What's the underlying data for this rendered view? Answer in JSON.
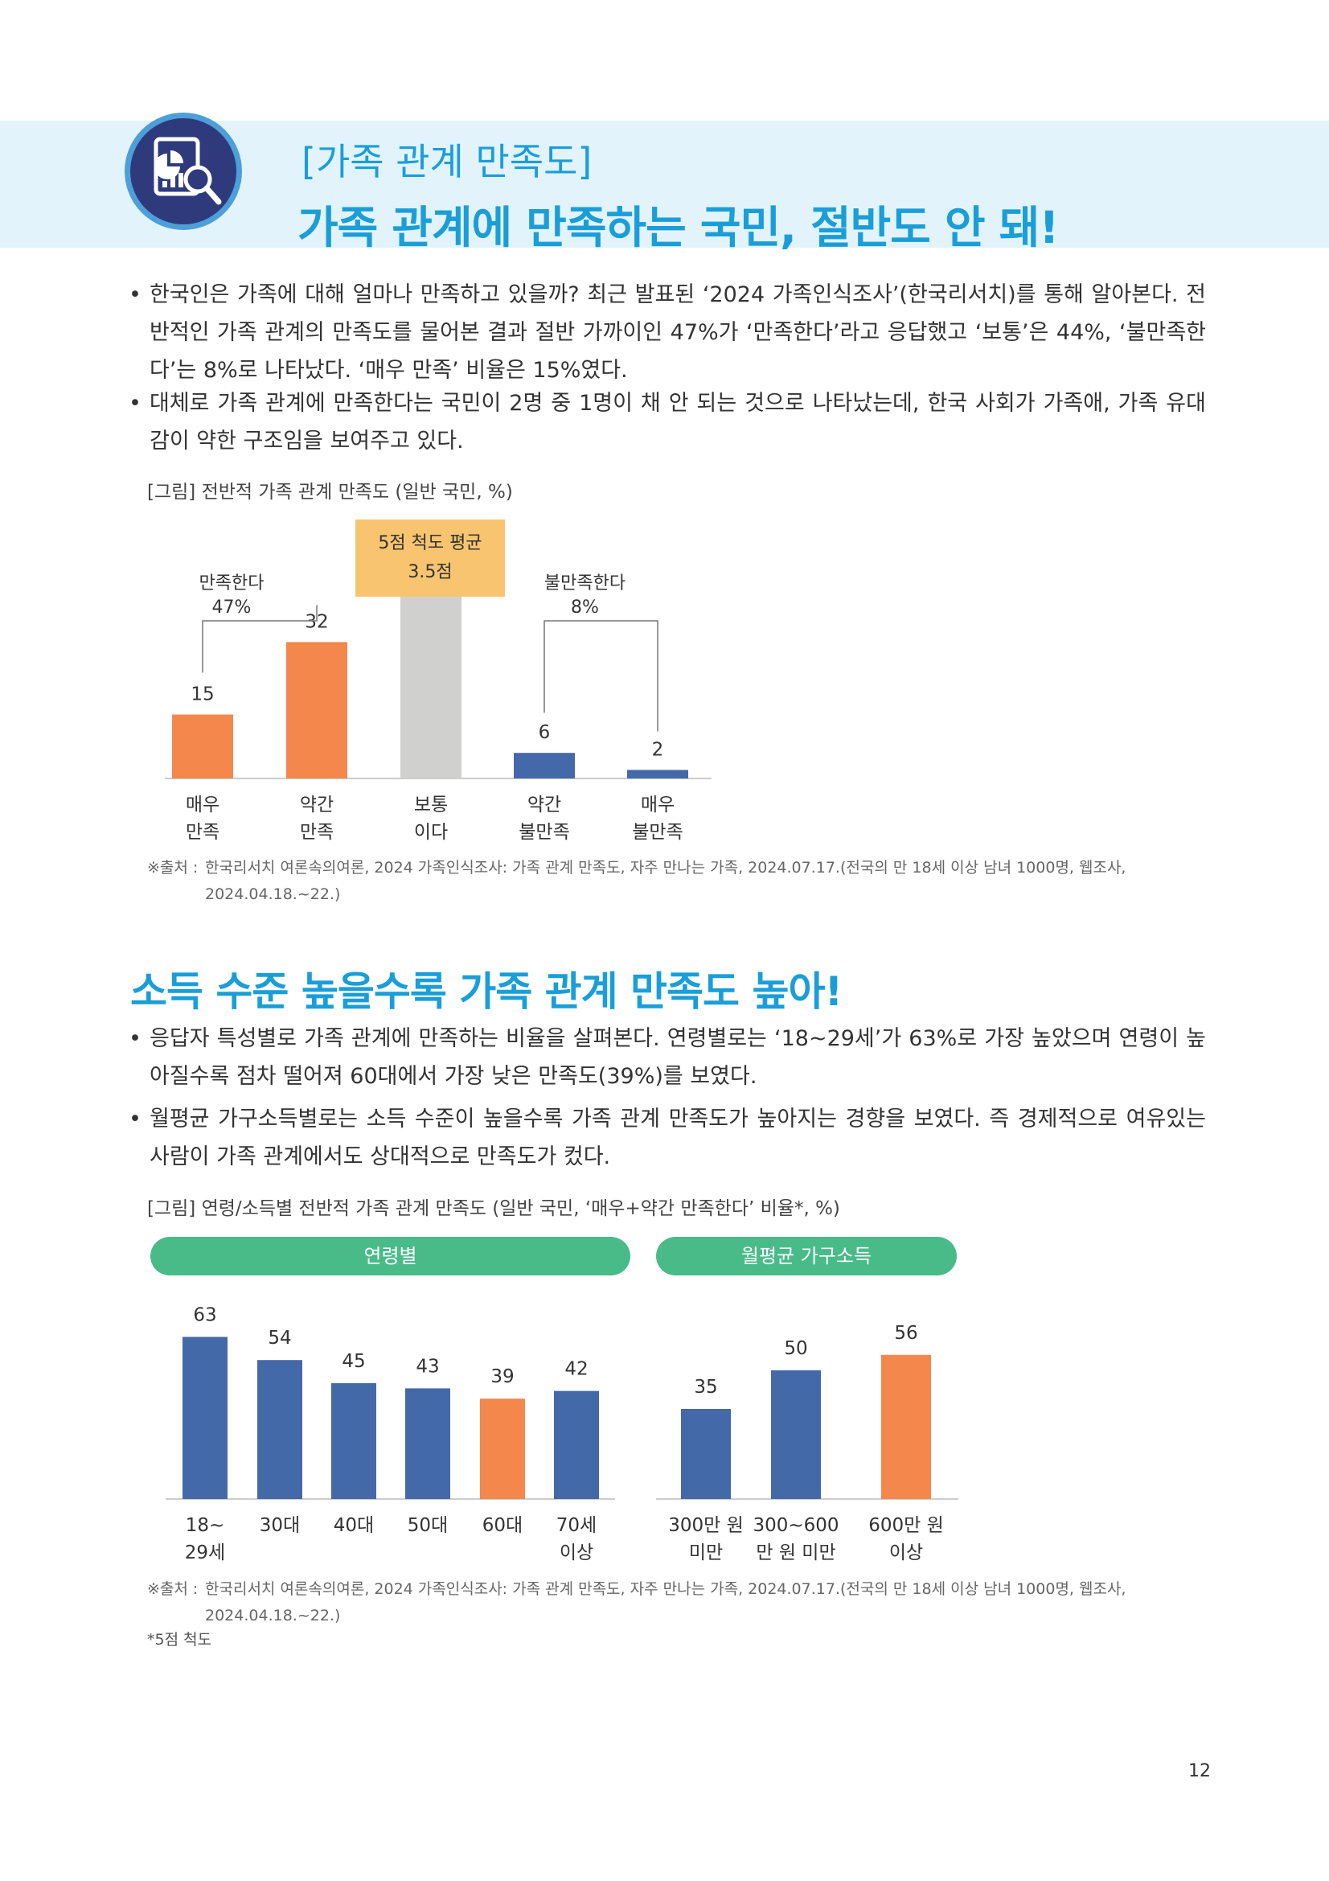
{
  "header": {
    "subtitle": "[가족 관계 만족도]",
    "title": "가족 관계에 만족하는 국민, 절반도 안 돼!"
  },
  "section1": {
    "bullets": [
      "한국인은 가족에 대해 얼마나 만족하고 있을까? 최근 발표된 ‘2024 가족인식조사’(한국리서치)를 통해 알아본다. 전반적인 가족 관계의 만족도를 물어본 결과 절반 가까이인 47%가 ‘만족한다’라고 응답했고 ‘보통’은 44%, ‘불만족한다’는 8%로 나타났다. ‘매우 만족’ 비율은 15%였다.",
      "대체로 가족 관계에 만족한다는 국민이 2명 중 1명이 채 안 되는 것으로 나타났는데, 한국 사회가 가족애, 가족 유대감이 약한 구조임을 보여주고 있다."
    ],
    "figure_caption": "[그림] 전반적 가족 관계 만족도 (일반 국민, %)",
    "source_lead": "※출처 :",
    "source_text": "한국리서치 여론속의여론, 2024 가족인식조사: 가족 관계 만족도, 자주 만나는 가족, 2024.07.17.(전국의 만 18세 이상 남녀 1000명, 웹조사, 2024.04.18.~22.)"
  },
  "chart_data": [
    {
      "type": "bar",
      "categories": [
        "매우 만족",
        "약간 만족",
        "보통 이다",
        "약간 불만족",
        "매우 불만족"
      ],
      "category_lines": [
        [
          "매우",
          "만족"
        ],
        [
          "약간",
          "만족"
        ],
        [
          "보통",
          "이다"
        ],
        [
          "약간",
          "불만족"
        ],
        [
          "매우",
          "불만족"
        ]
      ],
      "values": [
        15,
        32,
        44,
        6,
        2
      ],
      "colors": [
        "#f4874b",
        "#f4874b",
        "#d0d0ce",
        "#4469a9",
        "#4469a9"
      ],
      "annotations": {
        "satisfied": [
          "만족한다",
          "47%"
        ],
        "dissatisfied": [
          "불만족한다",
          "8%"
        ],
        "average": [
          "5점 척도 평균",
          "3.5점"
        ]
      },
      "ylim": [
        0,
        50
      ]
    },
    {
      "type": "bar",
      "group_label": "연령별",
      "categories": [
        "18~ 29세",
        "30대",
        "40대",
        "50대",
        "60대",
        "70세 이상"
      ],
      "category_lines": [
        [
          "18~",
          "29세"
        ],
        [
          "30대"
        ],
        [
          "40대"
        ],
        [
          "50대"
        ],
        [
          "60대"
        ],
        [
          "70세",
          "이상"
        ]
      ],
      "values": [
        63,
        54,
        45,
        43,
        39,
        42
      ],
      "colors": [
        "#4469a9",
        "#4469a9",
        "#4469a9",
        "#4469a9",
        "#f4874b",
        "#4469a9"
      ],
      "ylim": [
        0,
        70
      ]
    },
    {
      "type": "bar",
      "group_label": "월평균 가구소득",
      "categories": [
        "300만 원 미만",
        "300~600 만 원 미만",
        "600만 원 이상"
      ],
      "category_lines": [
        [
          "300만 원",
          "미만"
        ],
        [
          "300~600",
          "만 원 미만"
        ],
        [
          "600만 원",
          "이상"
        ]
      ],
      "values": [
        35,
        50,
        56
      ],
      "colors": [
        "#4469a9",
        "#4469a9",
        "#f4874b"
      ],
      "ylim": [
        0,
        70
      ]
    }
  ],
  "section2": {
    "title": "소득 수준 높을수록 가족 관계 만족도 높아!",
    "bullets": [
      "응답자 특성별로 가족 관계에 만족하는 비율을 살펴본다. 연령별로는 ‘18~29세’가 63%로 가장 높았으며 연령이 높아질수록 점차 떨어져 60대에서 가장 낮은 만족도(39%)를 보였다.",
      "월평균 가구소득별로는 소득 수준이 높을수록 가족 관계 만족도가 높아지는 경향을 보였다. 즉 경제적으로 여유있는 사람이 가족 관계에서도 상대적으로 만족도가 컸다."
    ],
    "figure_caption": "[그림] 연령/소득별 전반적 가족 관계 만족도 (일반 국민, ‘매우+약간 만족한다’ 비율*, %)",
    "pill_age": "연령별",
    "pill_income": "월평균 가구소득",
    "source_lead": "※출처 :",
    "source_text": "한국리서치 여론속의여론, 2024 가족인식조사: 가족 관계 만족도, 자주 만나는 가족, 2024.07.17.(전국의 만 18세 이상 남녀 1000명, 웹조사, 2024.04.18.~22.)",
    "footnote": "*5점 척도"
  },
  "page_number": "12",
  "header_icon": "document-chart-magnifier-icon"
}
